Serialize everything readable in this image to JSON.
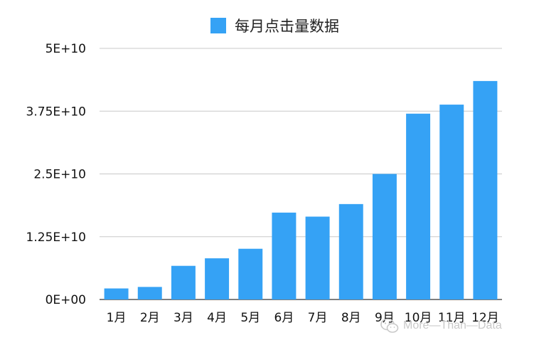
{
  "chart_data": {
    "type": "bar",
    "categories": [
      "1月",
      "2月",
      "3月",
      "4月",
      "5月",
      "6月",
      "7月",
      "8月",
      "9月",
      "10月",
      "11月",
      "12月"
    ],
    "series": [
      {
        "name": "每月点击量数据",
        "values": [
          2200000000,
          2500000000,
          6700000000,
          8200000000,
          10100000000,
          17300000000,
          16500000000,
          19000000000,
          25000000000,
          37000000000,
          38800000000,
          43500000000
        ]
      }
    ],
    "yticks": [
      "0E+00",
      "1.25E+10",
      "2.5E+10",
      "3.75E+10",
      "5E+10"
    ],
    "ylim": [
      0,
      50000000000
    ],
    "grid": true,
    "legend": "top",
    "colors": {
      "bar": "#35a2f5",
      "grid": "#c8c8c8",
      "axis": "#333333"
    }
  },
  "watermark": {
    "text": "More—Than—Data",
    "icon": "wechat-icon"
  }
}
